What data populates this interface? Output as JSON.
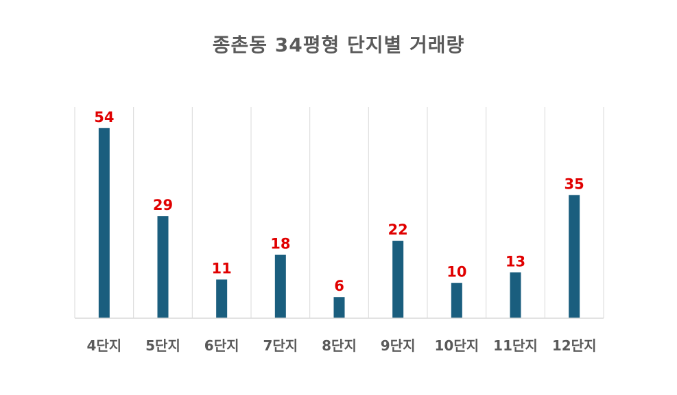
{
  "chart_data": {
    "type": "bar",
    "title": "종촌동 34평형 단지별 거래량",
    "categories": [
      "4단지",
      "5단지",
      "6단지",
      "7단지",
      "8단지",
      "9단지",
      "10단지",
      "11단지",
      "12단지"
    ],
    "values": [
      54,
      29,
      11,
      18,
      6,
      22,
      10,
      13,
      35
    ],
    "ylim": [
      0,
      60
    ],
    "grid": "vertical",
    "colors": {
      "bar": "#1a5e7e",
      "data_label": "#e00000",
      "text": "#595959",
      "grid": "#d9d9d9"
    }
  }
}
